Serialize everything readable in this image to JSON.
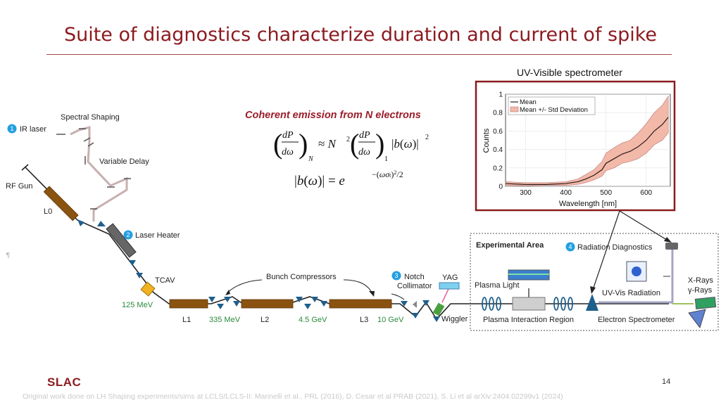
{
  "title": "Suite of diagnostics characterize duration and current of spike",
  "spectrometer": {
    "heading": "UV-Visible spectrometer",
    "legend_mean": "Mean",
    "legend_std": "Mean +/- Std Deviation",
    "xlabel": "Wavelength [nm]",
    "ylabel": "Counts",
    "xticks": [
      "300",
      "400",
      "500",
      "600"
    ],
    "yticks": [
      "0",
      "0.2",
      "0.4",
      "0.6",
      "0.8",
      "1"
    ]
  },
  "chart_data": {
    "type": "line",
    "xlabel": "Wavelength [nm]",
    "ylabel": "Counts",
    "xlim": [
      250,
      660
    ],
    "ylim": [
      0,
      1
    ],
    "grid": true,
    "legend_position": "top-left",
    "x": [
      250,
      300,
      350,
      400,
      430,
      450,
      470,
      490,
      500,
      520,
      540,
      560,
      580,
      600,
      620,
      640,
      655
    ],
    "series": [
      {
        "name": "Mean",
        "values": [
          0.03,
          0.02,
          0.02,
          0.03,
          0.05,
          0.08,
          0.12,
          0.18,
          0.25,
          0.3,
          0.35,
          0.38,
          0.43,
          0.5,
          0.6,
          0.67,
          0.75
        ]
      },
      {
        "name": "Mean +/- Std Deviation",
        "lower": [
          0.01,
          0.005,
          0.01,
          0.01,
          0.02,
          0.04,
          0.07,
          0.11,
          0.17,
          0.2,
          0.25,
          0.27,
          0.3,
          0.36,
          0.45,
          0.5,
          0.58
        ],
        "upper": [
          0.05,
          0.04,
          0.04,
          0.05,
          0.08,
          0.13,
          0.18,
          0.27,
          0.36,
          0.42,
          0.47,
          0.5,
          0.58,
          0.68,
          0.8,
          0.88,
          0.98
        ]
      }
    ]
  },
  "emission": {
    "heading": "Coherent emission from N electrons"
  },
  "labels": {
    "spectral_shaping": "Spectral Shaping",
    "ir_laser": "IR laser",
    "variable_delay": "Variable Delay",
    "rf_gun": "RF Gun",
    "l0": "L0",
    "laser_heater": "Laser Heater",
    "tcav": "TCAV",
    "mev125": "125 MeV",
    "bunch_compressors": "Bunch Compressors",
    "notch_collimator": "Notch\nCollimator",
    "yag": "YAG",
    "l1": "L1",
    "mev335": "335 MeV",
    "l2": "L2",
    "gev45": "4.5 GeV",
    "l3": "L3",
    "gev10": "10 GeV",
    "wiggler": "Wiggler",
    "experimental_area": "Experimental Area",
    "radiation_diagnostics": "Radiation Diagnostics",
    "plasma_light": "Plasma Light",
    "uv_vis_radiation": "UV-Vis Radiation",
    "xrays": "X-Rays",
    "gamma_rays": "γ-Rays",
    "plasma_interaction_region": "Plasma Interaction Region",
    "electron_spectrometer": "Electron Spectrometer",
    "n1": "1",
    "n2": "2",
    "n3": "3",
    "n4": "4"
  },
  "colors": {
    "title": "#8b1a1f",
    "linac": "#8b5310",
    "quad": "#1f5f8b",
    "accent": "#22a0e0"
  },
  "footer": "Original work done on LH Shaping experiments/sims at LCLS/LCLS-II: Marinelli et al., PRL (2016), D. Cesar et al PRAB (2021), S. Li et al arXiv:2404.02299v1 (2024)",
  "page_number": "14",
  "logo": "SLAC"
}
